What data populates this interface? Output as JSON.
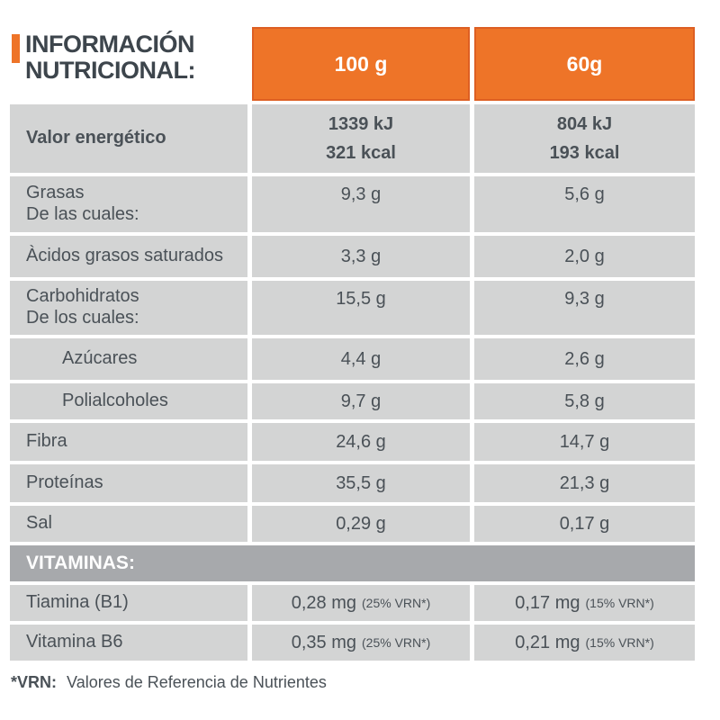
{
  "header": {
    "title_line1": "INFORMACIÓN",
    "title_line2": "NUTRICIONAL:",
    "col_100g": "100 g",
    "col_60g": "60g"
  },
  "energy_row": {
    "label": "Valor energético",
    "v100_kj": "1339 kJ",
    "v100_kcal": "321 kcal",
    "v60_kj": "804 kJ",
    "v60_kcal": "193 kcal"
  },
  "rows": [
    {
      "label": "Grasas",
      "sublabel": "De las cuales:",
      "v100": "9,3 g",
      "v60": "5,6 g"
    },
    {
      "label": "Àcidos grasos saturados",
      "v100": "3,3 g",
      "v60": "2,0 g"
    },
    {
      "label": "Carbohidratos",
      "sublabel": "De los cuales:",
      "v100": "15,5 g",
      "v60": "9,3 g"
    },
    {
      "label": "Azúcares",
      "v100": "4,4 g",
      "v60": "2,6 g"
    },
    {
      "label": "Polialcoholes",
      "v100": "9,7 g",
      "v60": "5,8 g"
    },
    {
      "label": "Fibra",
      "v100": "24,6 g",
      "v60": "14,7 g"
    },
    {
      "label": "Proteínas",
      "v100": "35,5 g",
      "v60": "21,3 g"
    },
    {
      "label": "Sal",
      "v100": "0,29 g",
      "v60": "0,17 g"
    }
  ],
  "vitamins": {
    "section_label": "VITAMINAS:",
    "items": [
      {
        "label": "Tiamina (B1)",
        "v100": "0,28 mg",
        "v100_note": "(25% VRN*)",
        "v60": "0,17 mg",
        "v60_note": "(15% VRN*)"
      },
      {
        "label": "Vitamina B6",
        "v100": "0,35 mg",
        "v100_note": "(25% VRN*)",
        "v60": "0,21 mg",
        "v60_note": "(15% VRN*)"
      }
    ]
  },
  "footnote": {
    "prefix": "*VRN:",
    "text": "Valores de Referencia de Nutrientes"
  },
  "colors": {
    "accent_orange": "#EE7428",
    "orange_border": "#DD5F23",
    "cell_gray": "#D3D4D4",
    "section_gray": "#A7A9AC",
    "title_dark": "#3D454C",
    "text_gray": "#4A5157"
  }
}
